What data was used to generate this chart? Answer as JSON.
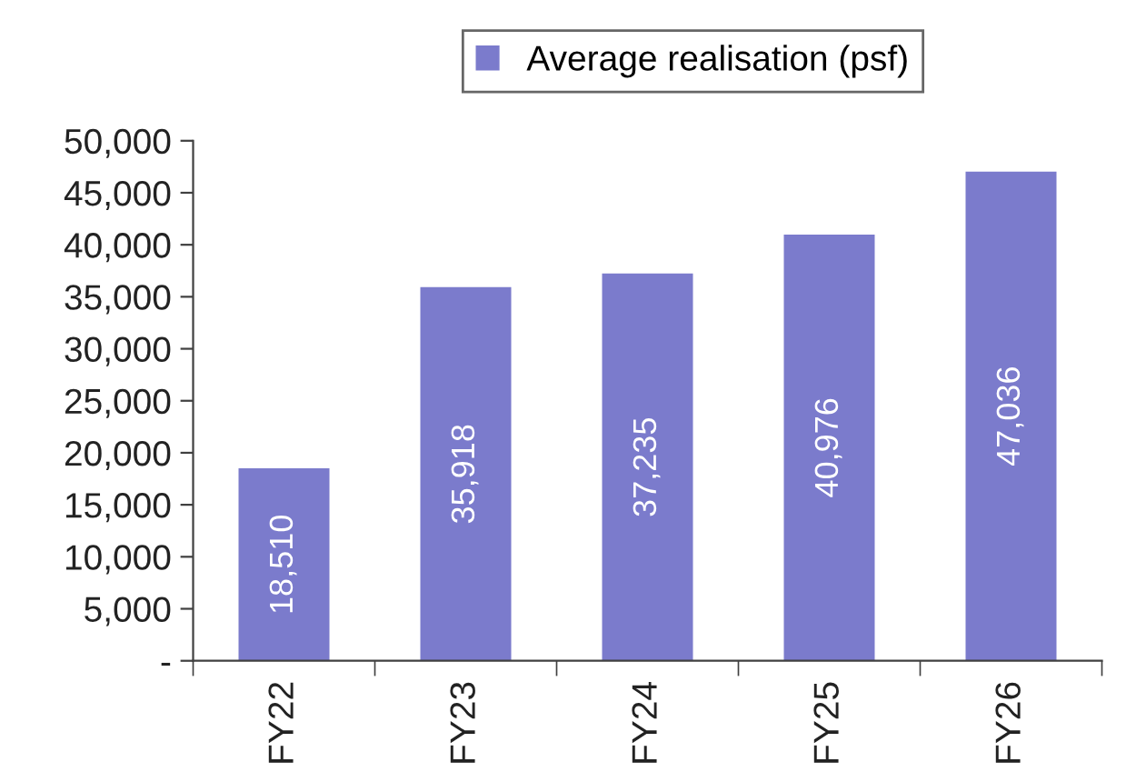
{
  "chart_data": {
    "type": "bar",
    "categories": [
      "FY22",
      "FY23",
      "FY24",
      "FY25",
      "FY26"
    ],
    "series": [
      {
        "name": "Average realisation (psf)",
        "color": "#7b7bcc",
        "values": [
          18510,
          35918,
          37235,
          40976,
          47036
        ]
      }
    ],
    "value_labels": [
      "18,510",
      "35,918",
      "37,235",
      "40,976",
      "47,036"
    ],
    "ylim": [
      0,
      50000
    ],
    "yticks": [
      {
        "value": 0,
        "label": "-"
      },
      {
        "value": 5000,
        "label": "5,000"
      },
      {
        "value": 10000,
        "label": "10,000"
      },
      {
        "value": 15000,
        "label": "15,000"
      },
      {
        "value": 20000,
        "label": "20,000"
      },
      {
        "value": 25000,
        "label": "25,000"
      },
      {
        "value": 30000,
        "label": "30,000"
      },
      {
        "value": 35000,
        "label": "35,000"
      },
      {
        "value": 40000,
        "label": "40,000"
      },
      {
        "value": 45000,
        "label": "45,000"
      },
      {
        "value": 50000,
        "label": "50,000"
      }
    ],
    "grid": false,
    "legend": "top"
  }
}
